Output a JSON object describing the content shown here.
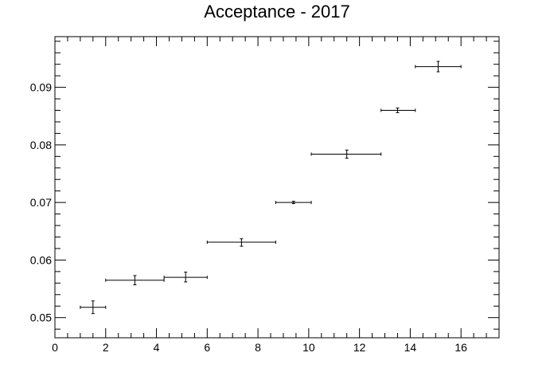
{
  "chart_data": {
    "type": "scatter",
    "title": "Acceptance - 2017",
    "xlabel": "",
    "ylabel": "",
    "xlim": [
      0,
      17.5
    ],
    "ylim": [
      0.0465,
      0.0988
    ],
    "grid": false,
    "legend": "none",
    "x_ticks": [
      "0",
      "2",
      "4",
      "6",
      "8",
      "10",
      "12",
      "14",
      "16"
    ],
    "y_ticks": [
      "0.05",
      "0.06",
      "0.07",
      "0.08",
      "0.09"
    ],
    "series": [
      {
        "marker": "error-bars",
        "color": "#000000",
        "points": [
          {
            "x": 1.5,
            "xlo": 1.0,
            "xhi": 2.0,
            "y": 0.0518,
            "ylo": 0.0507,
            "yhi": 0.0529
          },
          {
            "x": 3.15,
            "xlo": 2.0,
            "xhi": 4.3,
            "y": 0.0565,
            "ylo": 0.0557,
            "yhi": 0.0573
          },
          {
            "x": 5.15,
            "xlo": 4.3,
            "xhi": 6.0,
            "y": 0.057,
            "ylo": 0.0562,
            "yhi": 0.0579
          },
          {
            "x": 7.35,
            "xlo": 6.0,
            "xhi": 8.7,
            "y": 0.0631,
            "ylo": 0.0624,
            "yhi": 0.0637
          },
          {
            "x": 9.4,
            "xlo": 8.7,
            "xhi": 10.1,
            "y": 0.07,
            "ylo": 0.0698,
            "yhi": 0.0702
          },
          {
            "x": 11.5,
            "xlo": 10.1,
            "xhi": 12.85,
            "y": 0.0784,
            "ylo": 0.0777,
            "yhi": 0.0791
          },
          {
            "x": 13.5,
            "xlo": 12.85,
            "xhi": 14.2,
            "y": 0.086,
            "ylo": 0.0856,
            "yhi": 0.0864
          },
          {
            "x": 15.1,
            "xlo": 14.2,
            "xhi": 16.0,
            "y": 0.0936,
            "ylo": 0.0927,
            "yhi": 0.0945
          }
        ]
      }
    ]
  }
}
